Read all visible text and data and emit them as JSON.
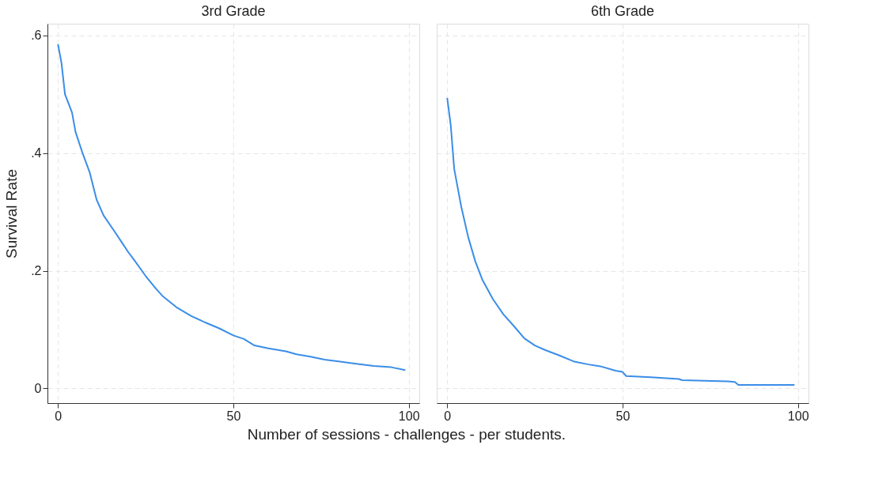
{
  "chart_data": [
    {
      "type": "line",
      "title": "3rd Grade",
      "xlabel": "Number of sessions - challenges - per students.",
      "ylabel": "Survival Rate",
      "x": [
        0,
        1,
        2,
        4,
        5,
        7,
        9,
        11,
        13,
        16,
        18,
        20,
        22,
        25,
        28,
        30,
        34,
        38,
        42,
        46,
        50,
        53,
        56,
        60,
        65,
        68,
        72,
        76,
        80,
        85,
        90,
        95,
        99
      ],
      "series": [
        {
          "color": "#3a8de8",
          "values": [
            0.585,
            0.553,
            0.5,
            0.469,
            0.436,
            0.4,
            0.368,
            0.321,
            0.294,
            0.268,
            0.25,
            0.232,
            0.216,
            0.191,
            0.169,
            0.156,
            0.137,
            0.123,
            0.112,
            0.102,
            0.09,
            0.084,
            0.073,
            0.068,
            0.063,
            0.058,
            0.054,
            0.049,
            0.046,
            0.042,
            0.038,
            0.036,
            0.031
          ]
        }
      ],
      "xlim": [
        -3,
        103
      ],
      "ylim": [
        -0.025,
        0.62
      ],
      "xticks": [
        0,
        50,
        100
      ],
      "yticks": [
        {
          "value": 0,
          "label": "0"
        },
        {
          "value": 0.2,
          "label": ".2"
        },
        {
          "value": 0.4,
          "label": ".4"
        },
        {
          "value": 0.6,
          "label": ".6"
        }
      ],
      "grid": true,
      "line_style": "solid"
    },
    {
      "type": "line",
      "title": "6th Grade",
      "x": [
        0,
        1,
        2,
        4,
        6,
        8,
        10,
        13,
        16,
        19,
        22,
        25,
        28,
        32,
        36,
        40,
        44,
        48,
        50,
        51,
        58,
        66,
        67,
        80,
        82,
        83,
        99
      ],
      "series": [
        {
          "color": "#3a8de8",
          "values": [
            0.494,
            0.448,
            0.373,
            0.309,
            0.257,
            0.216,
            0.185,
            0.152,
            0.126,
            0.106,
            0.085,
            0.073,
            0.065,
            0.056,
            0.046,
            0.041,
            0.037,
            0.03,
            0.028,
            0.021,
            0.019,
            0.016,
            0.014,
            0.012,
            0.011,
            0.006,
            0.006
          ]
        }
      ],
      "xlim": [
        -3,
        103
      ],
      "ylim": [
        -0.025,
        0.62
      ],
      "xticks": [
        0,
        50,
        100
      ],
      "yticks": [
        {
          "value": 0,
          "label": null
        },
        {
          "value": 0.2,
          "label": null
        },
        {
          "value": 0.4,
          "label": null
        },
        {
          "value": 0.6,
          "label": null
        }
      ],
      "grid": true,
      "line_style": "solid",
      "tick_labels": "x"
    }
  ]
}
